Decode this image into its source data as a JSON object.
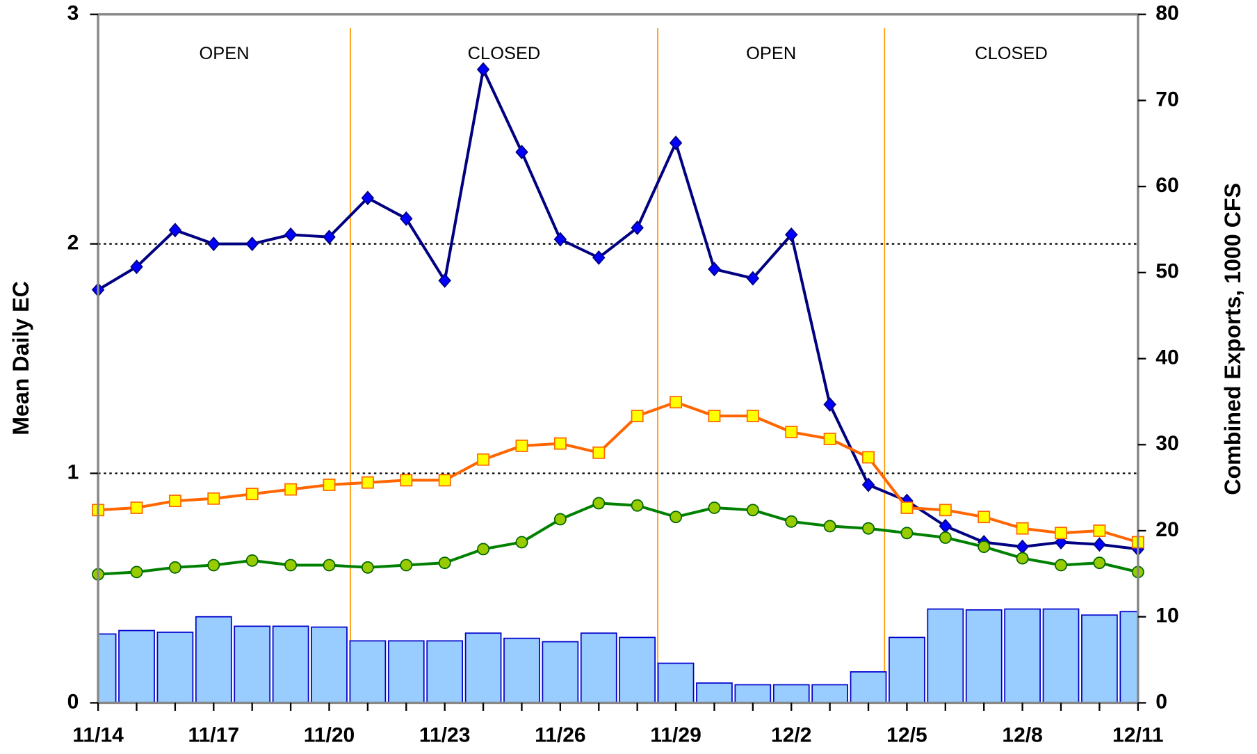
{
  "chart_data": {
    "type": "line",
    "ylabel": "Mean Daily EC",
    "y2label": "Combined Exports, 1000 CFS",
    "categories": [
      "11/14",
      null,
      null,
      "11/17",
      null,
      null,
      "11/20",
      null,
      null,
      "11/23",
      null,
      null,
      "11/26",
      null,
      null,
      "11/29",
      null,
      null,
      "12/2",
      null,
      null,
      "12/5",
      null,
      null,
      "12/8",
      null,
      null,
      "12/11"
    ],
    "ylim": [
      0,
      3
    ],
    "yticks": [
      0,
      1,
      2,
      3
    ],
    "y2lim": [
      0,
      80
    ],
    "y2ticks": [
      0,
      10,
      20,
      30,
      40,
      50,
      60,
      70,
      80
    ],
    "hlines": [
      1,
      2
    ],
    "dividers": [
      6.55,
      14.53,
      20.42
    ],
    "divider_color": "#ff9900",
    "region_labels": [
      "OPEN",
      "CLOSED",
      "OPEN",
      "CLOSED"
    ],
    "series": [
      {
        "type": "bar",
        "axis": "y2",
        "color": "#99ccff",
        "edge_color": "#0000cc",
        "values": [
          8.0,
          8.4,
          8.2,
          10.0,
          8.9,
          8.9,
          8.8,
          7.2,
          7.2,
          7.2,
          8.1,
          7.5,
          7.1,
          8.1,
          7.6,
          4.6,
          2.3,
          2.1,
          2.1,
          2.1,
          3.6,
          7.6,
          10.9,
          10.8,
          10.9,
          10.9,
          10.2,
          10.6
        ]
      },
      {
        "type": "line",
        "color": "#000080",
        "marker": "diamond",
        "marker_color": "#0000ff",
        "edge_color": "#000080",
        "values": [
          1.8,
          1.9,
          2.06,
          2.0,
          2.0,
          2.04,
          2.03,
          2.2,
          2.11,
          1.84,
          2.76,
          2.4,
          2.02,
          1.94,
          2.07,
          2.44,
          1.89,
          1.85,
          2.04,
          1.3,
          0.95,
          0.88,
          0.77,
          0.7,
          0.68,
          0.7,
          0.69,
          0.67
        ]
      },
      {
        "type": "line",
        "color": "#ff6600",
        "marker": "square",
        "marker_color": "#ffff00",
        "edge_color": "#ff6600",
        "values": [
          0.84,
          0.85,
          0.88,
          0.89,
          0.91,
          0.93,
          0.95,
          0.96,
          0.97,
          0.97,
          1.06,
          1.12,
          1.13,
          1.09,
          1.25,
          1.31,
          1.25,
          1.25,
          1.18,
          1.15,
          1.07,
          0.85,
          0.84,
          0.81,
          0.76,
          0.74,
          0.75,
          0.7
        ]
      },
      {
        "type": "line",
        "color": "#008000",
        "marker": "circle",
        "marker_color": "#99cc00",
        "edge_color": "#006600",
        "values": [
          0.56,
          0.57,
          0.59,
          0.6,
          0.62,
          0.6,
          0.6,
          0.59,
          0.6,
          0.61,
          0.67,
          0.7,
          0.8,
          0.87,
          0.86,
          0.81,
          0.85,
          0.84,
          0.79,
          0.77,
          0.76,
          0.74,
          0.72,
          0.68,
          0.63,
          0.6,
          0.61,
          0.57
        ]
      }
    ]
  }
}
